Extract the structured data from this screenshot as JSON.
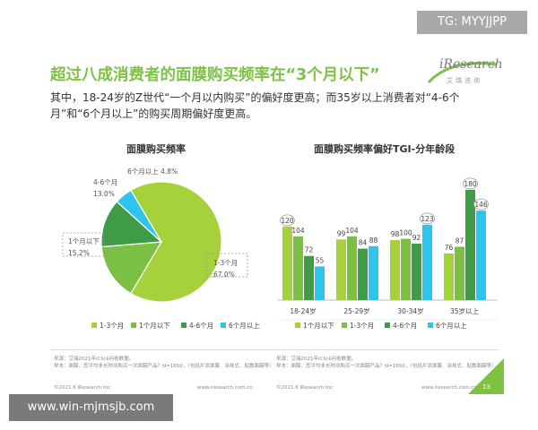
{
  "header": {
    "title": "超过八成消费者的面膜购买频率在“3个月以下”",
    "subtitle": "其中，18-24岁的Z世代“一个月以内购买”的偏好度更高；而35岁以上消费者对“4-6个月”和“6个月以上”的购买周期偏好度更高。"
  },
  "logo": {
    "name": "iResearch",
    "sub": "艾瑞咨询"
  },
  "watermark": {
    "top": "TG: MYYJJPP",
    "bottom": "www.win-mjmsjb.com"
  },
  "footer": {
    "left": {
      "source": "来源：艾瑞2021年iClick问卷数据。",
      "sample": "样本：面膜，您平均多长时间购买一次面膜产品？N=1650，（包括片状面膜、涂抹式、贴敷面膜等）",
      "copyright": "©2021.6 iResearch Inc",
      "url": "www.iresearch.com.cn"
    },
    "right": {
      "source": "来源：艾瑞2021年iClick问卷数据。",
      "sample": "样本：面膜，您平均多长时间购买一次面膜产品？N=1650，（包括片状面膜、涂抹式、贴敷面膜等）",
      "copyright": "©2021.6 iResearch Inc",
      "url": "www.iresearch.com.cn"
    },
    "page": "13"
  },
  "colors": {
    "accent": "#7dc242",
    "s1": "#a6d13a",
    "s2": "#7cc043",
    "s3": "#3f9b45",
    "s4": "#2ec4ee"
  },
  "chart_data": [
    {
      "type": "pie",
      "title": "面膜购买频率",
      "slices": [
        {
          "label": "1-3个月",
          "value": 67.0,
          "display": "1-3个月\n67.0%",
          "color": "#a6d13a"
        },
        {
          "label": "1个月以下",
          "value": 15.2,
          "display": "1个月以下\n15.2%",
          "color": "#7cc043"
        },
        {
          "label": "4-6个月",
          "value": 13.0,
          "display": "4-6个月\n13.0%",
          "color": "#3f9b45"
        },
        {
          "label": "6个月以上",
          "value": 4.8,
          "display": "6个月以上 4.8%",
          "color": "#2ec4ee"
        }
      ],
      "legend": [
        "1-3个月",
        "1个月以下",
        "4-6个月",
        "6个月以上"
      ],
      "legend_position": "bottom"
    },
    {
      "type": "bar",
      "title": "面膜购买频率偏好TGI-分年龄段",
      "categories": [
        "18-24岁",
        "25-29岁",
        "30-34岁",
        "35岁以上"
      ],
      "series": [
        {
          "name": "1个月以下",
          "values": [
            120,
            99,
            98,
            76
          ],
          "color": "#a6d13a"
        },
        {
          "name": "1-3个月",
          "values": [
            104,
            104,
            100,
            87
          ],
          "color": "#7cc043"
        },
        {
          "name": "4-6个月",
          "values": [
            72,
            84,
            92,
            180
          ],
          "color": "#3f9b45"
        },
        {
          "name": "6个月以上",
          "values": [
            55,
            88,
            123,
            146
          ],
          "color": "#2ec4ee"
        }
      ],
      "circled": [
        [
          0,
          0
        ],
        [
          2,
          3
        ],
        [
          3,
          2
        ],
        [
          3,
          3
        ]
      ],
      "ylim": [
        0,
        190
      ],
      "legend_position": "bottom",
      "grid": false
    }
  ]
}
